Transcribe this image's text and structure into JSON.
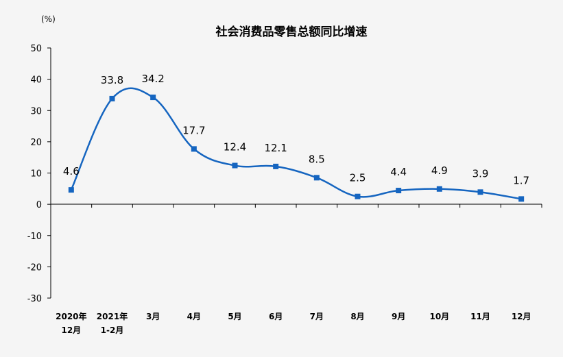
{
  "chart_data": {
    "type": "line",
    "title": "社会消费品零售总额同比增速",
    "unit_label": "(%)",
    "xlabel": "",
    "ylabel": "",
    "ylim": [
      -30,
      50
    ],
    "yticks": [
      "50",
      "40",
      "30",
      "20",
      "10",
      "0",
      "-10",
      "-20",
      "-30"
    ],
    "categories": [
      [
        "2020年",
        "12月"
      ],
      [
        "2021年",
        "1-2月"
      ],
      [
        "3月"
      ],
      [
        "4月"
      ],
      [
        "5月"
      ],
      [
        "6月"
      ],
      [
        "7月"
      ],
      [
        "8月"
      ],
      [
        "9月"
      ],
      [
        "10月"
      ],
      [
        "11月"
      ],
      [
        "12月"
      ]
    ],
    "values": [
      4.6,
      33.8,
      34.2,
      17.7,
      12.4,
      12.1,
      8.5,
      2.5,
      4.4,
      4.9,
      3.9,
      1.7
    ],
    "data_labels": [
      "4.6",
      "33.8",
      "34.2",
      "17.7",
      "12.4",
      "12.1",
      "8.5",
      "2.5",
      "4.4",
      "4.9",
      "3.9",
      "1.7"
    ],
    "grid": false,
    "legend": "none",
    "line_color": "#1565c0",
    "background": "#f5f5f5"
  }
}
